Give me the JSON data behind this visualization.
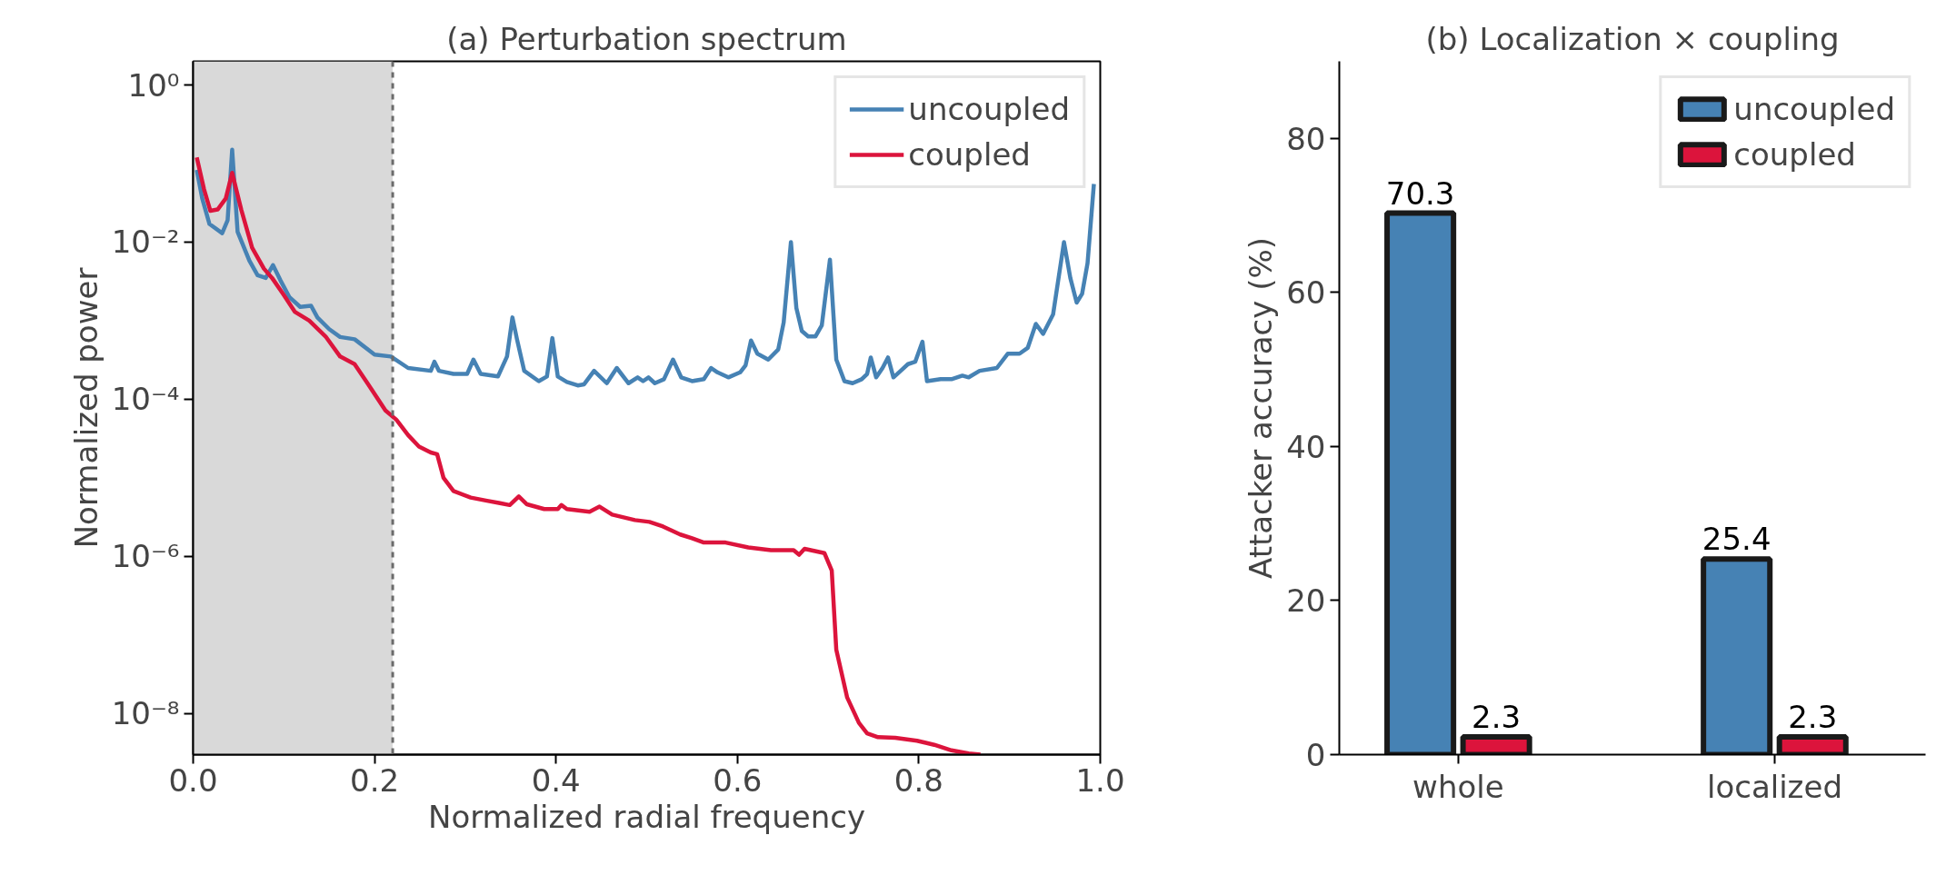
{
  "chart_data": [
    {
      "type": "line",
      "title": "(a) Perturbation spectrum",
      "xlabel": "Normalized radial frequency",
      "ylabel": "Normalized power",
      "log": "y",
      "grid": false,
      "legend": "top right",
      "xlim": [
        0,
        1
      ],
      "xticks": [
        {
          "value": 0,
          "label": "0.0"
        },
        0.2,
        0.4,
        0.6,
        0.8,
        {
          "value": 1,
          "label": "1.0"
        }
      ],
      "ylim": [
        3e-09,
        2
      ],
      "yticks": [
        {
          "value": 1,
          "label": "10⁰"
        },
        {
          "value": 0.01,
          "label": "10⁻²"
        },
        {
          "value": 0.0001,
          "label": "10⁻⁴"
        },
        {
          "value": 1e-06,
          "label": "10⁻⁶"
        },
        {
          "value": 1e-08,
          "label": "10⁻⁸"
        }
      ],
      "bands": [
        {
          "axis": "x",
          "from": 0,
          "to": 0.22,
          "color": "#d9d9d9"
        }
      ],
      "ref_lines": [
        {
          "axis": "x",
          "value": 0.22,
          "color": "#6b6b6b",
          "line_style": "dashed"
        }
      ],
      "series": [
        {
          "name": "uncoupled",
          "color": "#4682b4",
          "x": [
            0.004,
            0.01,
            0.018,
            0.032,
            0.038,
            0.043,
            0.049,
            0.062,
            0.071,
            0.08,
            0.088,
            0.096,
            0.106,
            0.118,
            0.13,
            0.137,
            0.15,
            0.162,
            0.178,
            0.2,
            0.218,
            0.237,
            0.262,
            0.266,
            0.271,
            0.287,
            0.302,
            0.309,
            0.317,
            0.336,
            0.346,
            0.352,
            0.357,
            0.365,
            0.381,
            0.39,
            0.396,
            0.402,
            0.412,
            0.424,
            0.431,
            0.442,
            0.456,
            0.467,
            0.48,
            0.49,
            0.496,
            0.502,
            0.509,
            0.519,
            0.529,
            0.538,
            0.55,
            0.563,
            0.571,
            0.578,
            0.59,
            0.603,
            0.609,
            0.615,
            0.622,
            0.634,
            0.645,
            0.651,
            0.659,
            0.665,
            0.671,
            0.678,
            0.686,
            0.693,
            0.702,
            0.709,
            0.718,
            0.727,
            0.737,
            0.743,
            0.747,
            0.753,
            0.76,
            0.766,
            0.772,
            0.78,
            0.788,
            0.796,
            0.804,
            0.809,
            0.824,
            0.836,
            0.848,
            0.855,
            0.867,
            0.886,
            0.898,
            0.911,
            0.92,
            0.929,
            0.937,
            0.948,
            0.96,
            0.967,
            0.974,
            0.98,
            0.986,
            0.993
          ],
          "values": [
            0.083,
            0.036,
            0.017,
            0.013,
            0.019,
            0.15,
            0.0135,
            0.0058,
            0.0038,
            0.0035,
            0.0051,
            0.0033,
            0.002,
            0.0015,
            0.00155,
            0.0011,
            0.00078,
            0.00062,
            0.00058,
            0.00037,
            0.00035,
            0.00025,
            0.00023,
            0.0003,
            0.00023,
            0.00021,
            0.00021,
            0.00032,
            0.00021,
            0.000195,
            0.00035,
            0.0011,
            0.00058,
            0.00023,
            0.00017,
            0.000195,
            0.0006,
            0.000195,
            0.000166,
            0.00015,
            0.000155,
            0.00023,
            0.00016,
            0.00025,
            0.00016,
            0.00019,
            0.00017,
            0.00019,
            0.00016,
            0.00018,
            0.00032,
            0.00019,
            0.00017,
            0.00018,
            0.00025,
            0.00022,
            0.00019,
            0.00022,
            0.00027,
            0.00056,
            0.00038,
            0.00032,
            0.00043,
            0.00095,
            0.01,
            0.00145,
            0.00074,
            0.00063,
            0.00063,
            0.00087,
            0.006,
            0.00032,
            0.00017,
            0.00016,
            0.00018,
            0.00021,
            0.00034,
            0.00019,
            0.00025,
            0.00034,
            0.00019,
            0.00023,
            0.00028,
            0.0003,
            0.00054,
            0.00017,
            0.00018,
            0.00018,
            0.0002,
            0.00019,
            0.00023,
            0.00025,
            0.00038,
            0.00038,
            0.00045,
            0.00091,
            0.00068,
            0.0012,
            0.01,
            0.0035,
            0.0017,
            0.0022,
            0.0054,
            0.055
          ]
        },
        {
          "name": "coupled",
          "color": "#dc143c",
          "x": [
            0.004,
            0.012,
            0.019,
            0.027,
            0.036,
            0.043,
            0.053,
            0.065,
            0.078,
            0.087,
            0.099,
            0.112,
            0.128,
            0.146,
            0.162,
            0.178,
            0.193,
            0.212,
            0.224,
            0.237,
            0.249,
            0.262,
            0.269,
            0.276,
            0.287,
            0.306,
            0.324,
            0.337,
            0.349,
            0.359,
            0.368,
            0.387,
            0.402,
            0.406,
            0.412,
            0.437,
            0.448,
            0.462,
            0.487,
            0.503,
            0.518,
            0.537,
            0.55,
            0.563,
            0.587,
            0.612,
            0.637,
            0.662,
            0.668,
            0.674,
            0.696,
            0.704,
            0.709,
            0.721,
            0.734,
            0.743,
            0.755,
            0.774,
            0.798,
            0.817,
            0.836,
            0.855,
            0.868
          ],
          "values": [
            0.12,
            0.047,
            0.025,
            0.026,
            0.036,
            0.076,
            0.026,
            0.0085,
            0.0046,
            0.0035,
            0.0022,
            0.0013,
            0.001,
            0.00063,
            0.00035,
            0.00028,
            0.000155,
            7.2e-05,
            5.5e-05,
            3.5e-05,
            2.5e-05,
            2.1e-05,
            2e-05,
            1e-05,
            6.8e-06,
            5.6e-06,
            5.1e-06,
            4.8e-06,
            4.5e-06,
            5.8e-06,
            4.6e-06,
            4e-06,
            4e-06,
            4.5e-06,
            4e-06,
            3.7e-06,
            4.3e-06,
            3.4e-06,
            2.9e-06,
            2.75e-06,
            2.4e-06,
            1.9e-06,
            1.7e-06,
            1.5e-06,
            1.5e-06,
            1.3e-06,
            1.2e-06,
            1.2e-06,
            1.05e-06,
            1.25e-06,
            1.1e-06,
            6.6e-07,
            6.5e-08,
            1.6e-08,
            7.6e-09,
            5.6e-09,
            5e-09,
            4.9e-09,
            4.5e-09,
            4e-09,
            3.4e-09,
            3.1e-09,
            3e-09
          ]
        }
      ]
    },
    {
      "type": "bar",
      "title": "(b) Localization × coupling",
      "ylabel": "Attacker accuracy (%)",
      "grid": false,
      "legend": "top right",
      "data_labels": true,
      "categories": [
        "whole",
        "localized"
      ],
      "ylim": [
        0,
        90
      ],
      "yticks": [
        0,
        20,
        40,
        60,
        80
      ],
      "series": [
        {
          "name": "uncoupled",
          "color": "#4682b4",
          "values": [
            70.3,
            25.4
          ]
        },
        {
          "name": "coupled",
          "color": "#dc143c",
          "values": [
            2.3,
            2.3
          ]
        }
      ]
    }
  ]
}
